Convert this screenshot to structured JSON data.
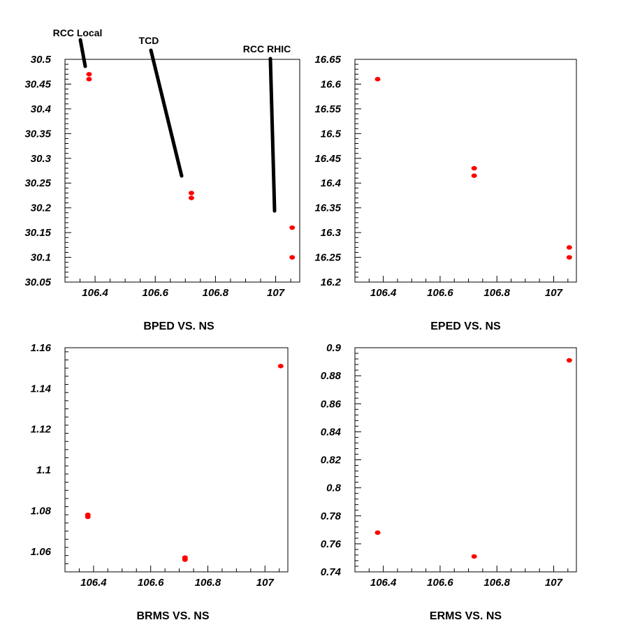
{
  "chart_data": [
    {
      "type": "scatter",
      "title": "BPED VS. NS",
      "xlim": [
        106.3,
        107.08
      ],
      "ylim": [
        30.05,
        30.5
      ],
      "xticks": [
        "106.4",
        "106.6",
        "106.8",
        "107"
      ],
      "yticks": [
        "30.05",
        "30.1",
        "30.15",
        "30.2",
        "30.25",
        "30.3",
        "30.35",
        "30.4",
        "30.45",
        "30.5"
      ],
      "marker_color": "#ff0000",
      "points": [
        {
          "x": 106.38,
          "y": 30.47
        },
        {
          "x": 106.38,
          "y": 30.46
        },
        {
          "x": 106.72,
          "y": 30.23
        },
        {
          "x": 106.72,
          "y": 30.22
        },
        {
          "x": 107.055,
          "y": 30.16
        },
        {
          "x": 107.055,
          "y": 30.1
        }
      ],
      "annotations": [
        "RCC Local",
        "TCD",
        "RCC RHIC"
      ]
    },
    {
      "type": "scatter",
      "title": "EPED VS. NS",
      "xlim": [
        106.3,
        107.08
      ],
      "ylim": [
        16.2,
        16.65
      ],
      "xticks": [
        "106.4",
        "106.6",
        "106.8",
        "107"
      ],
      "yticks": [
        "16.2",
        "16.25",
        "16.3",
        "16.35",
        "16.4",
        "16.45",
        "16.5",
        "16.55",
        "16.6",
        "16.65"
      ],
      "marker_color": "#ff0000",
      "points": [
        {
          "x": 106.38,
          "y": 16.61
        },
        {
          "x": 106.72,
          "y": 16.43
        },
        {
          "x": 106.72,
          "y": 16.415
        },
        {
          "x": 107.055,
          "y": 16.27
        },
        {
          "x": 107.055,
          "y": 16.25
        }
      ]
    },
    {
      "type": "scatter",
      "title": "BRMS VS. NS",
      "xlim": [
        106.3,
        107.08
      ],
      "ylim": [
        1.05,
        1.16
      ],
      "xticks": [
        "106.4",
        "106.6",
        "106.8",
        "107"
      ],
      "yticks": [
        "1.06",
        "1.08",
        "1.1",
        "1.12",
        "1.14",
        "1.16"
      ],
      "marker_color": "#ff0000",
      "points": [
        {
          "x": 106.38,
          "y": 1.078
        },
        {
          "x": 106.38,
          "y": 1.077
        },
        {
          "x": 106.72,
          "y": 1.057
        },
        {
          "x": 106.72,
          "y": 1.056
        },
        {
          "x": 107.055,
          "y": 1.151
        }
      ]
    },
    {
      "type": "scatter",
      "title": "ERMS VS. NS",
      "xlim": [
        106.3,
        107.08
      ],
      "ylim": [
        0.74,
        0.9
      ],
      "xticks": [
        "106.4",
        "106.6",
        "106.8",
        "107"
      ],
      "yticks": [
        "0.74",
        "0.76",
        "0.78",
        "0.8",
        "0.82",
        "0.84",
        "0.86",
        "0.88",
        "0.9"
      ],
      "marker_color": "#ff0000",
      "points": [
        {
          "x": 106.38,
          "y": 0.768
        },
        {
          "x": 106.72,
          "y": 0.751
        },
        {
          "x": 107.055,
          "y": 0.891
        }
      ]
    }
  ]
}
